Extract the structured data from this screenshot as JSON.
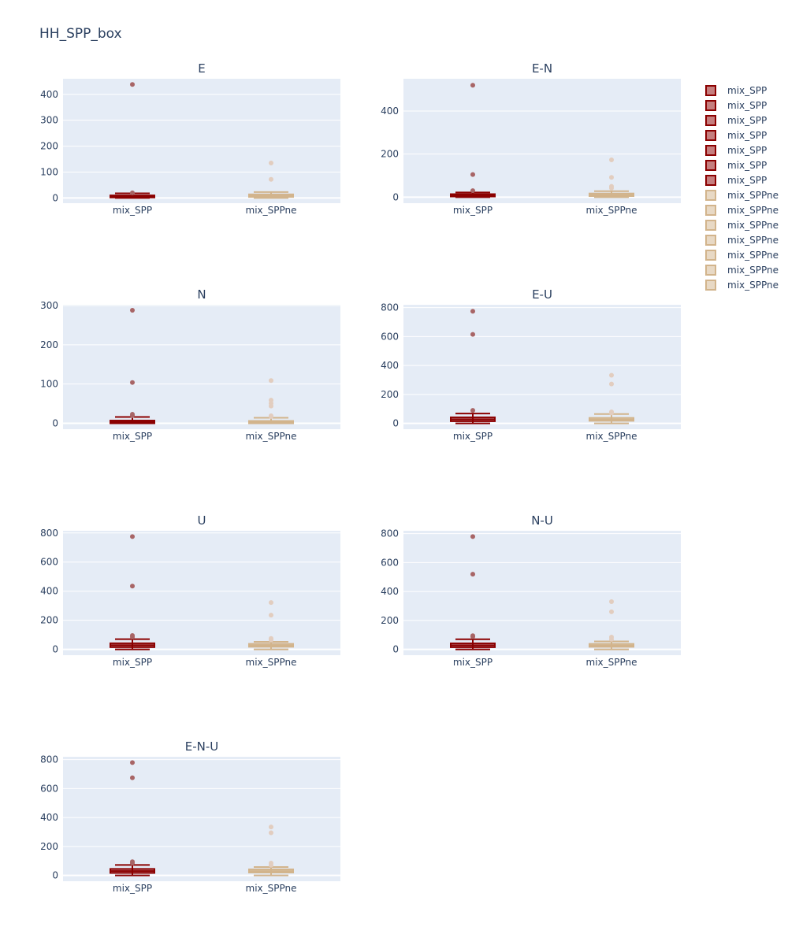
{
  "figure": {
    "title": "HH_SPP_box"
  },
  "colors": {
    "background": "#ffffff",
    "plot_bg": "#e5ecf6",
    "grid": "#ffffff",
    "text": "#2a3f5f",
    "spp_line": "#8b0000",
    "spp_fill": "rgba(139,0,0,0.5)",
    "spp_outlier": "#a86566",
    "sppne_line": "#d2b48c",
    "sppne_fill": "rgba(210,180,140,0.5)",
    "sppne_outlier": "#e2cdbf"
  },
  "legend": {
    "items": [
      {
        "label": "mix_SPP",
        "series": "spp"
      },
      {
        "label": "mix_SPP",
        "series": "spp"
      },
      {
        "label": "mix_SPP",
        "series": "spp"
      },
      {
        "label": "mix_SPP",
        "series": "spp"
      },
      {
        "label": "mix_SPP",
        "series": "spp"
      },
      {
        "label": "mix_SPP",
        "series": "spp"
      },
      {
        "label": "mix_SPP",
        "series": "spp"
      },
      {
        "label": "mix_SPPne",
        "series": "sppne"
      },
      {
        "label": "mix_SPPne",
        "series": "sppne"
      },
      {
        "label": "mix_SPPne",
        "series": "sppne"
      },
      {
        "label": "mix_SPPne",
        "series": "sppne"
      },
      {
        "label": "mix_SPPne",
        "series": "sppne"
      },
      {
        "label": "mix_SPPne",
        "series": "sppne"
      },
      {
        "label": "mix_SPPne",
        "series": "sppne"
      }
    ]
  },
  "chart_data": [
    {
      "type": "box",
      "title": "E",
      "categories": [
        "mix_SPP",
        "mix_SPPne"
      ],
      "ylim": [
        -20,
        460
      ],
      "yticks": [
        0,
        100,
        200,
        300,
        400
      ],
      "series": [
        {
          "name": "mix_SPP",
          "style": "spp",
          "q1": 2,
          "median": 5,
          "q3": 10,
          "lower_fence": 0,
          "upper_fence": 18,
          "outliers": [
            20,
            438
          ]
        },
        {
          "name": "mix_SPPne",
          "style": "sppne",
          "q1": 4,
          "median": 8,
          "q3": 14,
          "lower_fence": 0,
          "upper_fence": 23,
          "outliers": [
            72,
            135
          ]
        }
      ]
    },
    {
      "type": "box",
      "title": "E-N",
      "categories": [
        "mix_SPP",
        "mix_SPPne"
      ],
      "ylim": [
        -28,
        550
      ],
      "yticks": [
        0,
        200,
        400
      ],
      "series": [
        {
          "name": "mix_SPP",
          "style": "spp",
          "q1": 3,
          "median": 8,
          "q3": 14,
          "lower_fence": 0,
          "upper_fence": 22,
          "outliers": [
            30,
            105,
            520
          ]
        },
        {
          "name": "mix_SPPne",
          "style": "sppne",
          "q1": 5,
          "median": 10,
          "q3": 17,
          "lower_fence": 0,
          "upper_fence": 28,
          "outliers": [
            42,
            50,
            92,
            173
          ]
        }
      ]
    },
    {
      "type": "box",
      "title": "N",
      "categories": [
        "mix_SPP",
        "mix_SPPne"
      ],
      "ylim": [
        -15,
        302
      ],
      "yticks": [
        0,
        100,
        200,
        300
      ],
      "series": [
        {
          "name": "mix_SPP",
          "style": "spp",
          "q1": 0,
          "median": 3,
          "q3": 7,
          "lower_fence": 0,
          "upper_fence": 16,
          "outliers": [
            19,
            23,
            104,
            288
          ]
        },
        {
          "name": "mix_SPPne",
          "style": "sppne",
          "q1": 0,
          "median": 2,
          "q3": 6,
          "lower_fence": 0,
          "upper_fence": 14,
          "outliers": [
            17,
            19,
            44,
            51,
            59,
            109
          ]
        }
      ]
    },
    {
      "type": "box",
      "title": "E-U",
      "categories": [
        "mix_SPP",
        "mix_SPPne"
      ],
      "ylim": [
        -40,
        820
      ],
      "yticks": [
        0,
        200,
        400,
        600,
        800
      ],
      "series": [
        {
          "name": "mix_SPP",
          "style": "spp",
          "q1": 15,
          "median": 28,
          "q3": 42,
          "lower_fence": 0,
          "upper_fence": 68,
          "outliers": [
            90,
            615,
            775
          ]
        },
        {
          "name": "mix_SPPne",
          "style": "sppne",
          "q1": 18,
          "median": 27,
          "q3": 38,
          "lower_fence": 0,
          "upper_fence": 65,
          "outliers": [
            72,
            80,
            272,
            333
          ]
        }
      ]
    },
    {
      "type": "box",
      "title": "U",
      "categories": [
        "mix_SPP",
        "mix_SPPne"
      ],
      "ylim": [
        -40,
        815
      ],
      "yticks": [
        0,
        200,
        400,
        600,
        800
      ],
      "series": [
        {
          "name": "mix_SPP",
          "style": "spp",
          "q1": 15,
          "median": 28,
          "q3": 42,
          "lower_fence": 0,
          "upper_fence": 70,
          "outliers": [
            85,
            95,
            435,
            775
          ]
        },
        {
          "name": "mix_SPPne",
          "style": "sppne",
          "q1": 18,
          "median": 27,
          "q3": 38,
          "lower_fence": 0,
          "upper_fence": 52,
          "outliers": [
            65,
            75,
            235,
            322
          ]
        }
      ]
    },
    {
      "type": "box",
      "title": "N-U",
      "categories": [
        "mix_SPP",
        "mix_SPPne"
      ],
      "ylim": [
        -40,
        820
      ],
      "yticks": [
        0,
        200,
        400,
        600,
        800
      ],
      "series": [
        {
          "name": "mix_SPP",
          "style": "spp",
          "q1": 15,
          "median": 28,
          "q3": 42,
          "lower_fence": 0,
          "upper_fence": 70,
          "outliers": [
            88,
            95,
            520,
            780
          ]
        },
        {
          "name": "mix_SPPne",
          "style": "sppne",
          "q1": 18,
          "median": 27,
          "q3": 38,
          "lower_fence": 0,
          "upper_fence": 55,
          "outliers": [
            70,
            85,
            260,
            330
          ]
        }
      ]
    },
    {
      "type": "box",
      "title": "E-N-U",
      "categories": [
        "mix_SPP",
        "mix_SPPne"
      ],
      "ylim": [
        -40,
        820
      ],
      "yticks": [
        0,
        200,
        400,
        600,
        800
      ],
      "series": [
        {
          "name": "mix_SPP",
          "style": "spp",
          "q1": 17,
          "median": 30,
          "q3": 45,
          "lower_fence": 0,
          "upper_fence": 72,
          "outliers": [
            85,
            95,
            675,
            780
          ]
        },
        {
          "name": "mix_SPPne",
          "style": "sppne",
          "q1": 20,
          "median": 30,
          "q3": 42,
          "lower_fence": 0,
          "upper_fence": 58,
          "outliers": [
            70,
            85,
            295,
            335
          ]
        }
      ]
    }
  ]
}
